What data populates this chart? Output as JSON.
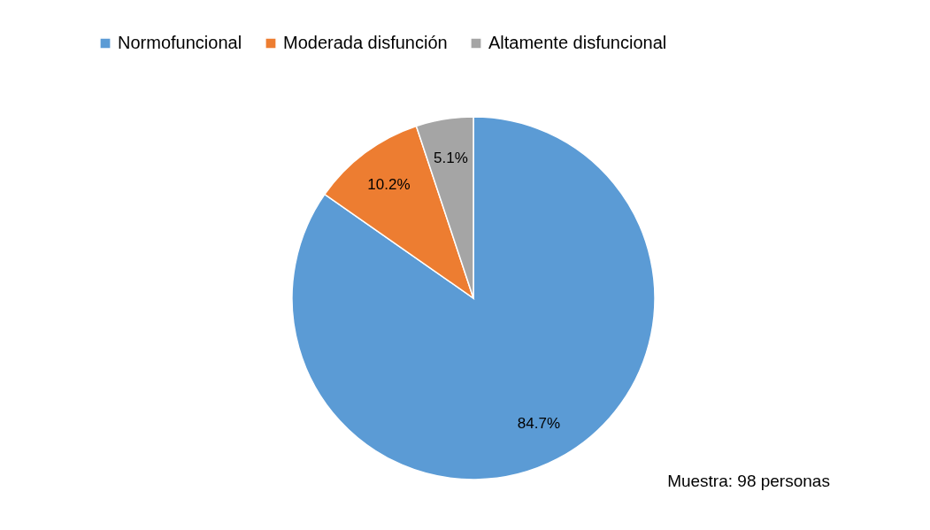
{
  "chart_data": {
    "type": "pie",
    "categories": [
      "Normofuncional",
      "Moderada disfunción",
      "Altamente disfuncional"
    ],
    "values": [
      84.7,
      10.2,
      5.1
    ],
    "colors": [
      "#5b9bd5",
      "#ed7d31",
      "#a5a5a5"
    ],
    "value_labels": [
      "84.7%",
      "10.2%",
      "5.1%"
    ],
    "legend": "top",
    "annotations": [
      "Muestra: 98 personas"
    ]
  }
}
